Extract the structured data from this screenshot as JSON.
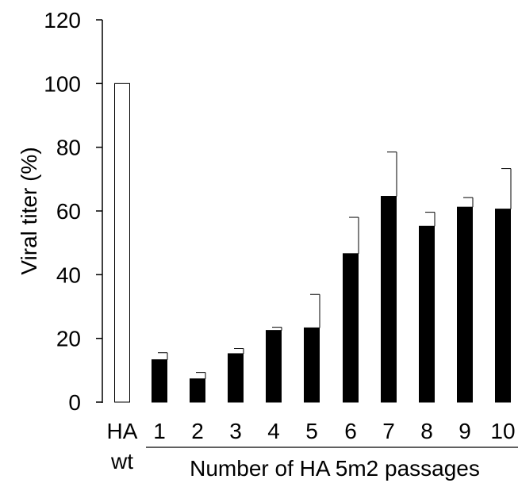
{
  "chart_data": {
    "type": "bar",
    "categories": [
      "HA\nwt",
      "1",
      "2",
      "3",
      "4",
      "5",
      "6",
      "7",
      "8",
      "9",
      "10"
    ],
    "category_lines": [
      [
        "HA",
        "wt"
      ],
      [
        "1"
      ],
      [
        "2"
      ],
      [
        "3"
      ],
      [
        "4"
      ],
      [
        "5"
      ],
      [
        "6"
      ],
      [
        "7"
      ],
      [
        "8"
      ],
      [
        "9"
      ],
      [
        "10"
      ]
    ],
    "values": [
      100,
      13.3,
      7.3,
      15.2,
      22.5,
      23.3,
      46.6,
      64.6,
      55.2,
      61.2,
      60.6
    ],
    "error_upper": [
      0,
      2.2,
      2.0,
      1.6,
      1.0,
      10.5,
      11.4,
      13.9,
      4.4,
      3.0,
      12.7
    ],
    "bar_fills": [
      "#ffffff",
      "#000000",
      "#000000",
      "#000000",
      "#000000",
      "#000000",
      "#000000",
      "#000000",
      "#000000",
      "#000000",
      "#000000"
    ],
    "ylabel": "Viral titer (%)",
    "xlabel": "Number of HA 5m2 passages",
    "ylim": [
      0,
      120
    ],
    "yticks": [
      0,
      20,
      40,
      60,
      80,
      100,
      120
    ],
    "grid": false,
    "legend": "none"
  }
}
